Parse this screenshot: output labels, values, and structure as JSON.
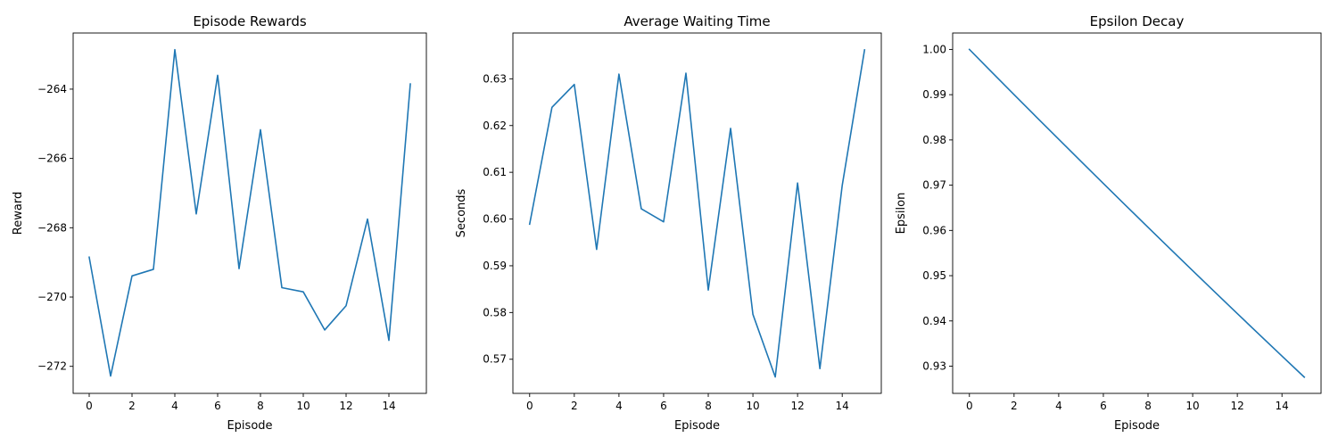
{
  "colors": {
    "series": "#1f77b4"
  },
  "chart_data": [
    {
      "type": "line",
      "title": "Episode Rewards",
      "xlabel": "Episode",
      "ylabel": "Reward",
      "xlim": [
        -0.75,
        15.75
      ],
      "ylim": [
        -272.78,
        -262.38
      ],
      "xticks": [
        0,
        2,
        4,
        6,
        8,
        10,
        12,
        14
      ],
      "yticks": [
        -272,
        -270,
        -268,
        -266,
        -264
      ],
      "ytick_decimals": 0,
      "x": [
        0,
        1,
        2,
        3,
        4,
        5,
        6,
        7,
        8,
        9,
        10,
        11,
        12,
        13,
        14,
        15
      ],
      "series": [
        {
          "values": [
            -268.85,
            -272.28,
            -269.39,
            -269.2,
            -262.86,
            -267.6,
            -263.6,
            -269.18,
            -265.17,
            -269.73,
            -269.85,
            -270.95,
            -270.25,
            -267.75,
            -271.25,
            -263.85
          ]
        }
      ]
    },
    {
      "type": "line",
      "title": "Average Waiting Time",
      "xlabel": "Episode",
      "ylabel": "Seconds",
      "xlim": [
        -0.75,
        15.75
      ],
      "ylim": [
        0.5627,
        0.6398
      ],
      "xticks": [
        0,
        2,
        4,
        6,
        8,
        10,
        12,
        14
      ],
      "yticks": [
        0.57,
        0.58,
        0.59,
        0.6,
        0.61,
        0.62,
        0.63
      ],
      "ytick_decimals": 2,
      "x": [
        0,
        1,
        2,
        3,
        4,
        5,
        6,
        7,
        8,
        9,
        10,
        11,
        12,
        13,
        14,
        15
      ],
      "series": [
        {
          "values": [
            0.5989,
            0.6239,
            0.6288,
            0.5935,
            0.631,
            0.6022,
            0.5994,
            0.6312,
            0.5848,
            0.6194,
            0.5796,
            0.5662,
            0.6077,
            0.568,
            0.6072,
            0.6362
          ]
        }
      ]
    },
    {
      "type": "line",
      "title": "Epsilon Decay",
      "xlabel": "Episode",
      "ylabel": "Epsilon",
      "xlim": [
        -0.75,
        15.75
      ],
      "ylim": [
        0.92399,
        1.00363
      ],
      "xticks": [
        0,
        2,
        4,
        6,
        8,
        10,
        12,
        14
      ],
      "yticks": [
        0.93,
        0.94,
        0.95,
        0.96,
        0.97,
        0.98,
        0.99,
        1.0
      ],
      "ytick_decimals": 2,
      "x": [
        0,
        1,
        2,
        3,
        4,
        5,
        6,
        7,
        8,
        9,
        10,
        11,
        12,
        13,
        14,
        15
      ],
      "series": [
        {
          "values": [
            1.0,
            0.995,
            0.990025,
            0.985075,
            0.98015,
            0.975249,
            0.970373,
            0.965521,
            0.960693,
            0.95589,
            0.95111,
            0.946355,
            0.941623,
            0.936915,
            0.93223,
            0.927569
          ]
        }
      ]
    }
  ]
}
